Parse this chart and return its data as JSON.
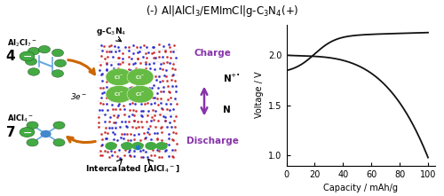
{
  "title": "(-) Al|AlCl$_3$/EMImCl|g-C$_3$N$_4$(+)",
  "title_fontsize": 8.5,
  "graph_xlim": [
    0,
    105
  ],
  "graph_ylim": [
    0.9,
    2.3
  ],
  "graph_xticks": [
    0,
    20,
    40,
    60,
    80,
    100
  ],
  "graph_yticks": [
    1.0,
    1.5,
    2.0
  ],
  "xlabel": "Capacity / mAh/g",
  "ylabel": "Voltage / V",
  "charge_color": "#111111",
  "discharge_color": "#111111",
  "background_color": "#ffffff",
  "orange": "#cc6600",
  "purple": "#8833aa",
  "green_mol": "#44aa44",
  "green_cl": "#66bb44"
}
